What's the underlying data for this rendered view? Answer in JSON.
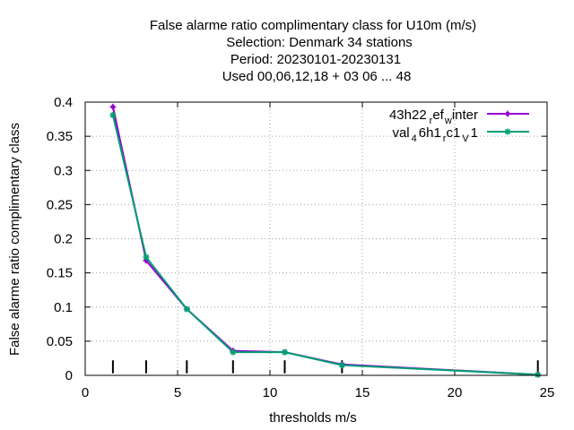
{
  "chart_data": {
    "type": "line",
    "title_lines": [
      "False alarme ratio complimentary class  for U10m (m/s)",
      "Selection: Denmark     34 stations",
      "Period: 20230101-20230131",
      "Used  00,06,12,18  + 03 06 ... 48"
    ],
    "xlabel": "thresholds m/s",
    "ylabel": "False alarme ratio complimentary class",
    "xlim": [
      0,
      25
    ],
    "ylim": [
      0,
      0.4
    ],
    "xticks": [
      0,
      5,
      10,
      15,
      20,
      25
    ],
    "yticks": [
      0,
      0.05,
      0.1,
      0.15,
      0.2,
      0.25,
      0.3,
      0.35,
      0.4
    ],
    "grid": true,
    "legend_position": "top-right",
    "threshold_markers": [
      1.5,
      3.3,
      5.5,
      8,
      10.8,
      13.9,
      24.5
    ],
    "series": [
      {
        "name_parts": [
          "43h22",
          "r",
          "ef",
          "w",
          "inter"
        ],
        "color": "#9400d3",
        "marker": "plus",
        "x": [
          1.5,
          3.3,
          5.5,
          8,
          10.8,
          13.9,
          24.5
        ],
        "y": [
          0.393,
          0.168,
          0.097,
          0.036,
          0.034,
          0.016,
          0.001
        ]
      },
      {
        "name_parts": [
          "val",
          "4",
          "6h1",
          "r",
          "c1",
          "V",
          "1"
        ],
        "color": "#009e73",
        "marker": "star",
        "x": [
          1.5,
          3.3,
          5.5,
          8,
          10.8,
          13.9,
          24.5
        ],
        "y": [
          0.381,
          0.173,
          0.097,
          0.034,
          0.034,
          0.015,
          0.001
        ]
      }
    ]
  }
}
